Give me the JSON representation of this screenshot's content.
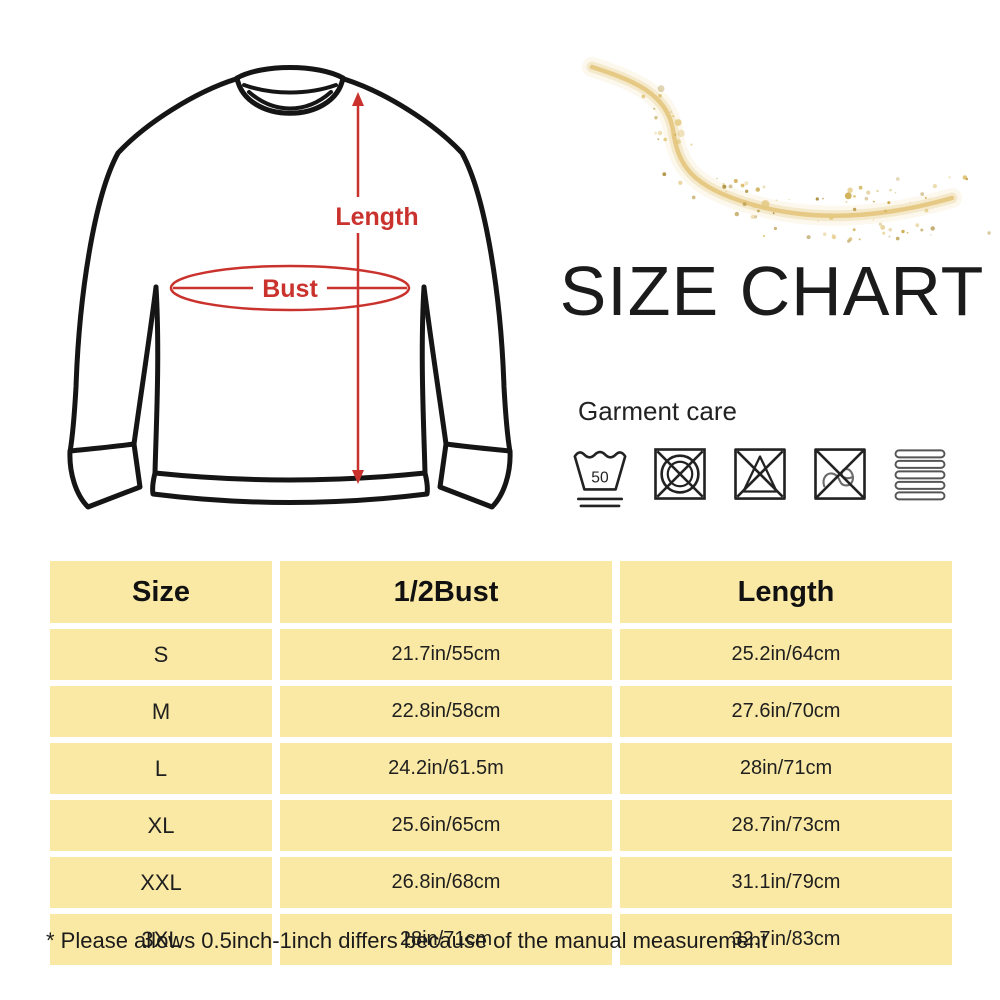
{
  "title": "SIZE CHART",
  "sweatshirt_diagram": {
    "length_label": "Length",
    "bust_label": "Bust"
  },
  "garment_care": {
    "heading": "Garment care",
    "wash_temp_label": "50",
    "icon_names": [
      "machine-wash-50",
      "do-not-tumble-dry",
      "do-not-bleach",
      "do-not-wring",
      "dry-flat"
    ]
  },
  "size_table": {
    "headers": {
      "size": "Size",
      "bust": "1/2Bust",
      "length": "Length"
    },
    "rows": [
      {
        "size": "S",
        "bust": "21.7in/55cm",
        "length": "25.2in/64cm"
      },
      {
        "size": "M",
        "bust": "22.8in/58cm",
        "length": "27.6in/70cm"
      },
      {
        "size": "L",
        "bust": "24.2in/61.5m",
        "length": "28in/71cm"
      },
      {
        "size": "XL",
        "bust": "25.6in/65cm",
        "length": "28.7in/73cm"
      },
      {
        "size": "XXL",
        "bust": "26.8in/68cm",
        "length": "31.1in/79cm"
      },
      {
        "size": "3XL",
        "bust": "28in/71cm",
        "length": "32.7in/83cm"
      }
    ]
  },
  "footnote": "* Please allows 0.5inch-1inch differs because of the manual measurement",
  "colors": {
    "table_cell": "#FAE9A4",
    "accent_red": "#C9322D",
    "gold": "#E9CF8E",
    "outline_black": "#151515"
  },
  "chart_data": {
    "type": "table",
    "title": "SIZE CHART",
    "columns": [
      "Size",
      "1/2Bust",
      "Length"
    ],
    "rows": [
      [
        "S",
        "21.7in/55cm",
        "25.2in/64cm"
      ],
      [
        "M",
        "22.8in/58cm",
        "27.6in/70cm"
      ],
      [
        "L",
        "24.2in/61.5m",
        "28in/71cm"
      ],
      [
        "XL",
        "25.6in/65cm",
        "28.7in/73cm"
      ],
      [
        "XXL",
        "26.8in/68cm",
        "31.1in/79cm"
      ],
      [
        "3XL",
        "28in/71cm",
        "32.7in/83cm"
      ]
    ],
    "footnote": "* Please allows 0.5inch-1inch differs because of the manual measurement"
  }
}
